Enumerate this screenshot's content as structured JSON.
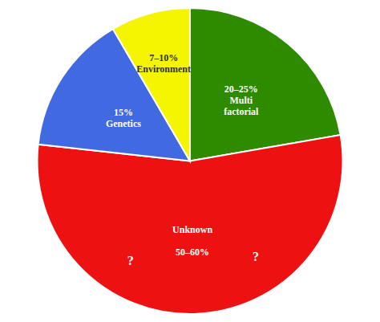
{
  "chart_data": {
    "type": "pie",
    "categories": [
      "20–25%\nMulti\nfactorial",
      "Unknown\n\n50–60%",
      "15%\nGenetics",
      "7–10%\nEnvironment"
    ],
    "values": [
      22.5,
      55,
      15,
      8.5
    ],
    "colors": [
      "#2e8b00",
      "#ee1111",
      "#4169e1",
      "#f5f500"
    ],
    "annotations": [
      {
        "text": "?"
      },
      {
        "text": "?"
      }
    ]
  }
}
